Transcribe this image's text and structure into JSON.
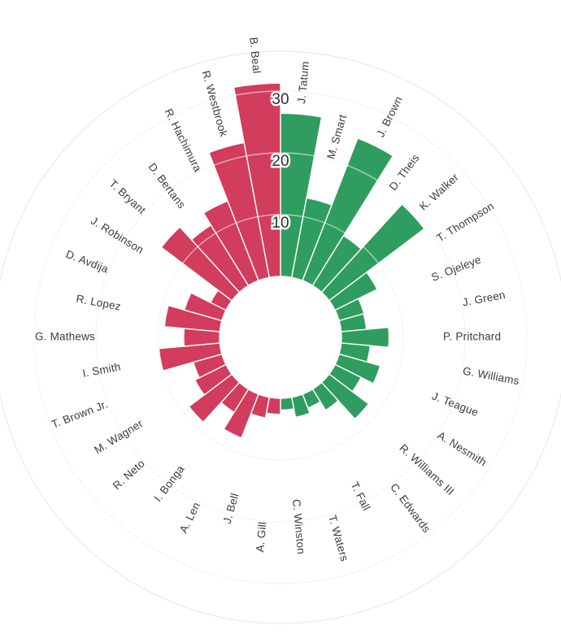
{
  "chart_data": {
    "type": "bar",
    "variant": "radial-polar",
    "title": "",
    "rings": [
      10,
      20,
      30
    ],
    "axis_max": 40,
    "grid": true,
    "colors": {
      "green": "#2f9d5f",
      "red": "#d23c5d"
    },
    "players": [
      {
        "name": "J. Tatum",
        "value": 26.4,
        "team": "green"
      },
      {
        "name": "M. Smart",
        "value": 13.1,
        "team": "green"
      },
      {
        "name": "J. Brown",
        "value": 24.7,
        "team": "green"
      },
      {
        "name": "D. Theis",
        "value": 9.5,
        "team": "green"
      },
      {
        "name": "K. Walker",
        "value": 19.3,
        "team": "green"
      },
      {
        "name": "T. Thompson",
        "value": 7.6,
        "team": "green"
      },
      {
        "name": "S. Ojeleye",
        "value": 4.2,
        "team": "green"
      },
      {
        "name": "J. Green",
        "value": 4.1,
        "team": "green"
      },
      {
        "name": "P. Pritchard",
        "value": 7.7,
        "team": "green"
      },
      {
        "name": "G. Williams",
        "value": 4.7,
        "team": "green"
      },
      {
        "name": "J. Teague",
        "value": 6.9,
        "team": "green"
      },
      {
        "name": "A. Nesmith",
        "value": 4.7,
        "team": "green"
      },
      {
        "name": "R. Williams III",
        "value": 8.0,
        "team": "green"
      },
      {
        "name": "C. Edwards",
        "value": 4.0,
        "team": "green"
      },
      {
        "name": "T. Fall",
        "value": 2.4,
        "team": "green"
      },
      {
        "name": "T. Waters",
        "value": 3.3,
        "team": "green"
      },
      {
        "name": "C. Winston",
        "value": 1.9,
        "team": "green"
      },
      {
        "name": "A. Gill",
        "value": 2.6,
        "team": "red"
      },
      {
        "name": "J. Bell",
        "value": 3.4,
        "team": "red"
      },
      {
        "name": "A. Len",
        "value": 7.6,
        "team": "red"
      },
      {
        "name": "I. Bonga",
        "value": 4.4,
        "team": "red"
      },
      {
        "name": "R. Neto",
        "value": 8.7,
        "team": "red"
      },
      {
        "name": "M. Wagner",
        "value": 5.6,
        "team": "red"
      },
      {
        "name": "T. Brown Jr.",
        "value": 4.8,
        "team": "red"
      },
      {
        "name": "I. Smith",
        "value": 9.9,
        "team": "red"
      },
      {
        "name": "G. Mathews",
        "value": 5.8,
        "team": "red"
      },
      {
        "name": "R. Lopez",
        "value": 9.0,
        "team": "red"
      },
      {
        "name": "D. Avdija",
        "value": 6.3,
        "team": "red"
      },
      {
        "name": "J. Robinson",
        "value": 2.8,
        "team": "red"
      },
      {
        "name": "T. Bryant",
        "value": 14.3,
        "team": "red"
      },
      {
        "name": "D. Bertans",
        "value": 11.5,
        "team": "red"
      },
      {
        "name": "R. Hachimura",
        "value": 13.8,
        "team": "red"
      },
      {
        "name": "R. Westbrook",
        "value": 22.2,
        "team": "red"
      },
      {
        "name": "B. Beal",
        "value": 31.3,
        "team": "red"
      }
    ]
  }
}
